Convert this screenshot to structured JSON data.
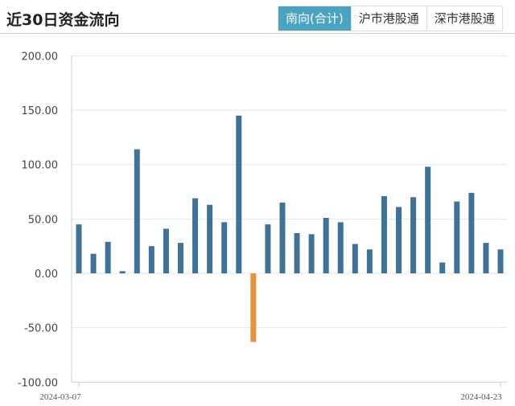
{
  "header": {
    "title": "近30日资金流向",
    "tabs": [
      {
        "label": "南向(合计)",
        "active": true
      },
      {
        "label": "沪市港股通",
        "active": false
      },
      {
        "label": "深市港股通",
        "active": false
      }
    ]
  },
  "chart_data": {
    "type": "bar",
    "ylim": [
      -100,
      200
    ],
    "yticks": [
      "200.00",
      "150.00",
      "100.00",
      "50.00",
      "0.00",
      "-50.00",
      "-100.00"
    ],
    "ytick_values": [
      200,
      150,
      100,
      50,
      0,
      -50,
      -100
    ],
    "x_first_label": "2024-03-07",
    "x_last_label": "2024-04-23",
    "grid": true,
    "colors": {
      "positive": "#3e7399",
      "negative": "#e8923a"
    },
    "values": [
      45,
      18,
      29,
      2,
      114,
      25,
      41,
      28,
      69,
      63,
      47,
      145,
      -63,
      45,
      65,
      37,
      36,
      51,
      47,
      27,
      22,
      71,
      61,
      70,
      98,
      10,
      66,
      74,
      28,
      22
    ]
  }
}
